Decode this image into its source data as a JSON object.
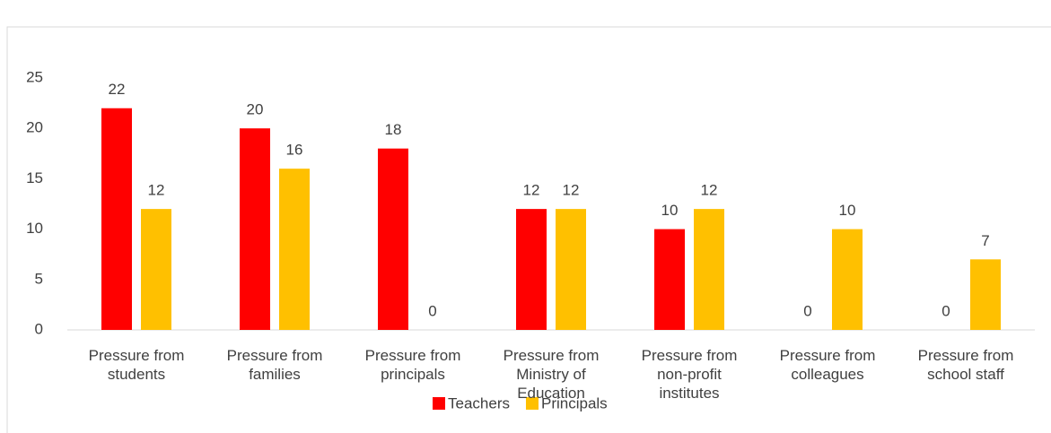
{
  "chart_data": {
    "type": "bar",
    "categories": [
      "Pressure from students",
      "Pressure from families",
      "Pressure from principals",
      "Pressure from Ministry of Education",
      "Pressure from non-profit institutes",
      "Pressure from colleagues",
      "Pressure from school staff"
    ],
    "series": [
      {
        "name": "Teachers",
        "color": "#ff0000",
        "values": [
          22,
          20,
          18,
          12,
          10,
          0,
          0
        ]
      },
      {
        "name": "Principals",
        "color": "#ffc000",
        "values": [
          12,
          16,
          0,
          12,
          12,
          10,
          7
        ]
      }
    ],
    "ylim": [
      0,
      25
    ],
    "yticks": [
      0,
      5,
      10,
      15,
      20,
      25
    ],
    "grid": false,
    "legend": "bottom"
  }
}
